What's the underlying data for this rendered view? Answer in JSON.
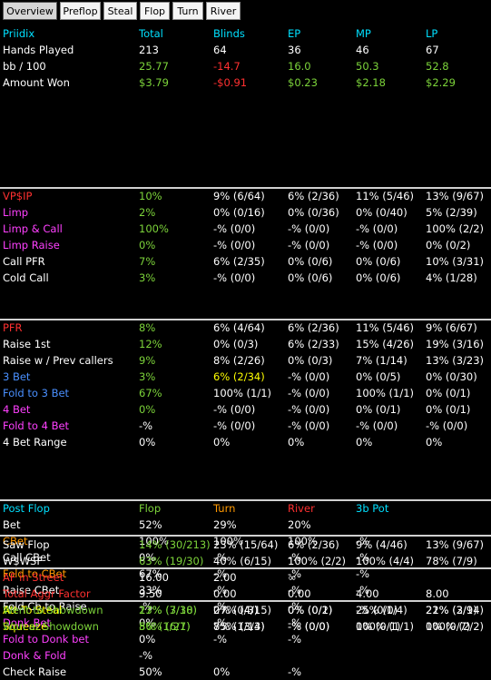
{
  "tabs": [
    {
      "label": "Overview",
      "active": true
    },
    {
      "label": "Preflop",
      "active": false
    },
    {
      "label": "Steal",
      "active": false
    },
    {
      "label": "Flop",
      "active": false
    },
    {
      "label": "Turn",
      "active": false
    },
    {
      "label": "River",
      "active": false
    }
  ],
  "colors": {
    "cyan": "#00e0ff",
    "green": "#7cd33a",
    "red": "#ff3030",
    "magenta": "#ff40ff",
    "orange": "#ff9900",
    "yellow": "#ffff00",
    "blue": "#4a90ff",
    "white": "#ffffff"
  },
  "sections": [
    {
      "rows": [
        {
          "cells": [
            "Priidix",
            "Total",
            "Blinds",
            "EP",
            "MP",
            "LP"
          ],
          "colors": [
            "cyan",
            "cyan",
            "cyan",
            "cyan",
            "cyan",
            "cyan"
          ],
          "header": true
        },
        {
          "cells": [
            "Hands Played",
            "213",
            "64",
            "36",
            "46",
            "67"
          ],
          "colors": [
            "white",
            "white",
            "white",
            "white",
            "white",
            "white"
          ]
        },
        {
          "cells": [
            "bb / 100",
            "25.77",
            "-14.7",
            "16.0",
            "50.3",
            "52.8"
          ],
          "colors": [
            "white",
            "green",
            "red",
            "green",
            "green",
            "green"
          ]
        },
        {
          "cells": [
            "Amount Won",
            "$3.79",
            "-$0.91",
            "$0.23",
            "$2.18",
            "$2.29"
          ],
          "colors": [
            "white",
            "green",
            "red",
            "green",
            "green",
            "green"
          ]
        }
      ]
    },
    {
      "rows": [
        {
          "cells": [
            "VP$IP",
            "10%",
            "9% (6/64)",
            "6% (2/36)",
            "11% (5/46)",
            "13% (9/67)"
          ],
          "colors": [
            "red",
            "green",
            "white",
            "white",
            "white",
            "white"
          ]
        },
        {
          "cells": [
            "Limp",
            "2%",
            "0% (0/16)",
            "0% (0/36)",
            "0% (0/40)",
            "5% (2/39)"
          ],
          "colors": [
            "magenta",
            "green",
            "white",
            "white",
            "white",
            "white"
          ]
        },
        {
          "cells": [
            "Limp & Call",
            "100%",
            "-% (0/0)",
            "-% (0/0)",
            "-% (0/0)",
            "100% (2/2)"
          ],
          "colors": [
            "magenta",
            "green",
            "white",
            "white",
            "white",
            "white"
          ]
        },
        {
          "cells": [
            "Limp Raise",
            "0%",
            "-% (0/0)",
            "-% (0/0)",
            "-% (0/0)",
            "0% (0/2)"
          ],
          "colors": [
            "magenta",
            "green",
            "white",
            "white",
            "white",
            "white"
          ]
        },
        {
          "cells": [
            "Call PFR",
            "7%",
            "6% (2/35)",
            "0% (0/6)",
            "0% (0/6)",
            "10% (3/31)"
          ],
          "colors": [
            "white",
            "green",
            "white",
            "white",
            "white",
            "white"
          ]
        },
        {
          "cells": [
            "Cold Call",
            "3%",
            "-% (0/0)",
            "0% (0/6)",
            "0% (0/6)",
            "4% (1/28)"
          ],
          "colors": [
            "white",
            "green",
            "white",
            "white",
            "white",
            "white"
          ]
        }
      ]
    },
    {
      "rows": [
        {
          "cells": [
            "PFR",
            "8%",
            "6% (4/64)",
            "6% (2/36)",
            "11% (5/46)",
            "9% (6/67)"
          ],
          "colors": [
            "red",
            "green",
            "white",
            "white",
            "white",
            "white"
          ]
        },
        {
          "cells": [
            "Raise 1st",
            "12%",
            "0% (0/3)",
            "6% (2/33)",
            "15% (4/26)",
            "19% (3/16)"
          ],
          "colors": [
            "white",
            "green",
            "white",
            "white",
            "white",
            "white"
          ]
        },
        {
          "cells": [
            "Raise w / Prev callers",
            "9%",
            "8% (2/26)",
            "0% (0/3)",
            "7% (1/14)",
            "13% (3/23)"
          ],
          "colors": [
            "white",
            "green",
            "white",
            "white",
            "white",
            "white"
          ]
        },
        {
          "cells": [
            "3 Bet",
            "3%",
            "6% (2/34)",
            "-% (0/0)",
            "0% (0/5)",
            "0% (0/30)"
          ],
          "colors": [
            "blue",
            "green",
            "yellow",
            "white",
            "white",
            "white"
          ]
        },
        {
          "cells": [
            "Fold to 3 Bet",
            "67%",
            "100% (1/1)",
            "-% (0/0)",
            "100% (1/1)",
            "0% (0/1)"
          ],
          "colors": [
            "blue",
            "green",
            "white",
            "white",
            "white",
            "white"
          ]
        },
        {
          "cells": [
            "4 Bet",
            "0%",
            "-% (0/0)",
            "-% (0/0)",
            "0% (0/1)",
            "0% (0/1)"
          ],
          "colors": [
            "magenta",
            "green",
            "white",
            "white",
            "white",
            "white"
          ]
        },
        {
          "cells": [
            "Fold to 4 Bet",
            "-%",
            "-% (0/0)",
            "-% (0/0)",
            "-% (0/0)",
            "-% (0/0)"
          ],
          "colors": [
            "magenta",
            "white",
            "white",
            "white",
            "white",
            "white"
          ]
        },
        {
          "cells": [
            "4 Bet Range",
            "0%",
            "0%",
            "0%",
            "0%",
            "0%"
          ],
          "colors": [
            "white",
            "white",
            "white",
            "white",
            "white",
            "white"
          ]
        }
      ]
    },
    {
      "rows": [
        {
          "cells": [
            "Post Flop",
            "Flop",
            "Turn",
            "River",
            "3b Pot",
            ""
          ],
          "colors": [
            "cyan",
            "green",
            "orange",
            "red",
            "cyan",
            "white"
          ],
          "header": true
        },
        {
          "cells": [
            "Bet",
            "52%",
            "29%",
            "20%",
            "",
            ""
          ],
          "colors": [
            "white",
            "white",
            "white",
            "white",
            "white",
            "white"
          ]
        },
        {
          "cells": [
            "CBet",
            "100%",
            "100%",
            "100%",
            "-%",
            ""
          ],
          "colors": [
            "orange",
            "white",
            "white",
            "white",
            "white",
            "white"
          ]
        },
        {
          "cells": [
            "Call CBet",
            "0%",
            "-%",
            "-%",
            "-%",
            ""
          ],
          "colors": [
            "white",
            "white",
            "white",
            "white",
            "white",
            "white"
          ]
        },
        {
          "cells": [
            "Fold to CBet",
            "67%",
            "-%",
            "-%",
            "-%",
            ""
          ],
          "colors": [
            "orange",
            "white",
            "white",
            "white",
            "white",
            "white"
          ]
        },
        {
          "cells": [
            "Raise CBet",
            "33%",
            "-%",
            "-%",
            "-%",
            ""
          ],
          "colors": [
            "white",
            "white",
            "white",
            "white",
            "white",
            "white"
          ]
        },
        {
          "cells": [
            "Fold Cb to Raise",
            "-%",
            "-%",
            "-%",
            "",
            ""
          ],
          "colors": [
            "white",
            "white",
            "white",
            "white",
            "white",
            "white"
          ]
        },
        {
          "cells": [
            "Donk Bet",
            "0%",
            "-%",
            "-%",
            "",
            ""
          ],
          "colors": [
            "magenta",
            "white",
            "white",
            "white",
            "white",
            "white"
          ]
        },
        {
          "cells": [
            "Fold to Donk bet",
            "0%",
            "-%",
            "-%",
            "",
            ""
          ],
          "colors": [
            "magenta",
            "white",
            "white",
            "white",
            "white",
            "white"
          ]
        },
        {
          "cells": [
            "Donk & Fold",
            "-%",
            "",
            "",
            "",
            ""
          ],
          "colors": [
            "magenta",
            "white",
            "white",
            "white",
            "white",
            "white"
          ]
        },
        {
          "cells": [
            "Check Raise",
            "50%",
            "0%",
            "-%",
            "",
            ""
          ],
          "colors": [
            "white",
            "white",
            "white",
            "white",
            "white",
            "white"
          ]
        }
      ]
    },
    {
      "rows": [
        {
          "cells": [
            "Saw Flop",
            "14% (30/213)",
            "23% (15/64)",
            "6% (2/36)",
            "9% (4/46)",
            "13% (9/67)"
          ],
          "colors": [
            "white",
            "green",
            "white",
            "white",
            "white",
            "white"
          ]
        },
        {
          "cells": [
            "W$WSF",
            "63% (19/30)",
            "40% (6/15)",
            "100% (2/2)",
            "100% (4/4)",
            "78% (7/9)"
          ],
          "colors": [
            "white",
            "green",
            "white",
            "white",
            "white",
            "white"
          ]
        }
      ]
    },
    {
      "rows": [
        {
          "cells": [
            "AF in Street",
            "16.00",
            "2.00",
            "∞",
            "",
            ""
          ],
          "colors": [
            "red",
            "white",
            "white",
            "white",
            "white",
            "white"
          ]
        },
        {
          "cells": [
            "Total Aggr Factor",
            "9.50",
            "0.00",
            "0.00",
            "4.00",
            "8.00"
          ],
          "colors": [
            "red",
            "white",
            "white",
            "white",
            "white",
            "white"
          ]
        },
        {
          "cells": [
            "Att To Steal",
            "17% (3/18)",
            "0% (0/3)",
            "0% (0/1)",
            "-% (0/0)",
            "21% (3/14)"
          ],
          "colors": [
            "yellow",
            "green",
            "white",
            "white",
            "white",
            "white"
          ]
        },
        {
          "cells": [
            "Squeeze",
            "5% (1/21)",
            "8% (1/13)",
            "-% (0/0)",
            "0% (0/1)",
            "0% (0/7)"
          ],
          "colors": [
            "yellow",
            "green",
            "white",
            "white",
            "white",
            "white"
          ]
        }
      ]
    },
    {
      "rows": [
        {
          "cells": [
            "Went to Showdown",
            "23% (7/30)",
            "27% (4/15)",
            "0% (0/2)",
            "25% (1/4)",
            "22% (2/9)"
          ],
          "colors": [
            "green",
            "green",
            "white",
            "white",
            "white",
            "white"
          ]
        },
        {
          "cells": [
            "Won at Showdown",
            "86% (6/7)",
            "75% (3/4)",
            "-% (0/0)",
            "100% (1/1)",
            "100% (2/2)"
          ],
          "colors": [
            "green",
            "green",
            "white",
            "white",
            "white",
            "white"
          ]
        }
      ]
    }
  ]
}
